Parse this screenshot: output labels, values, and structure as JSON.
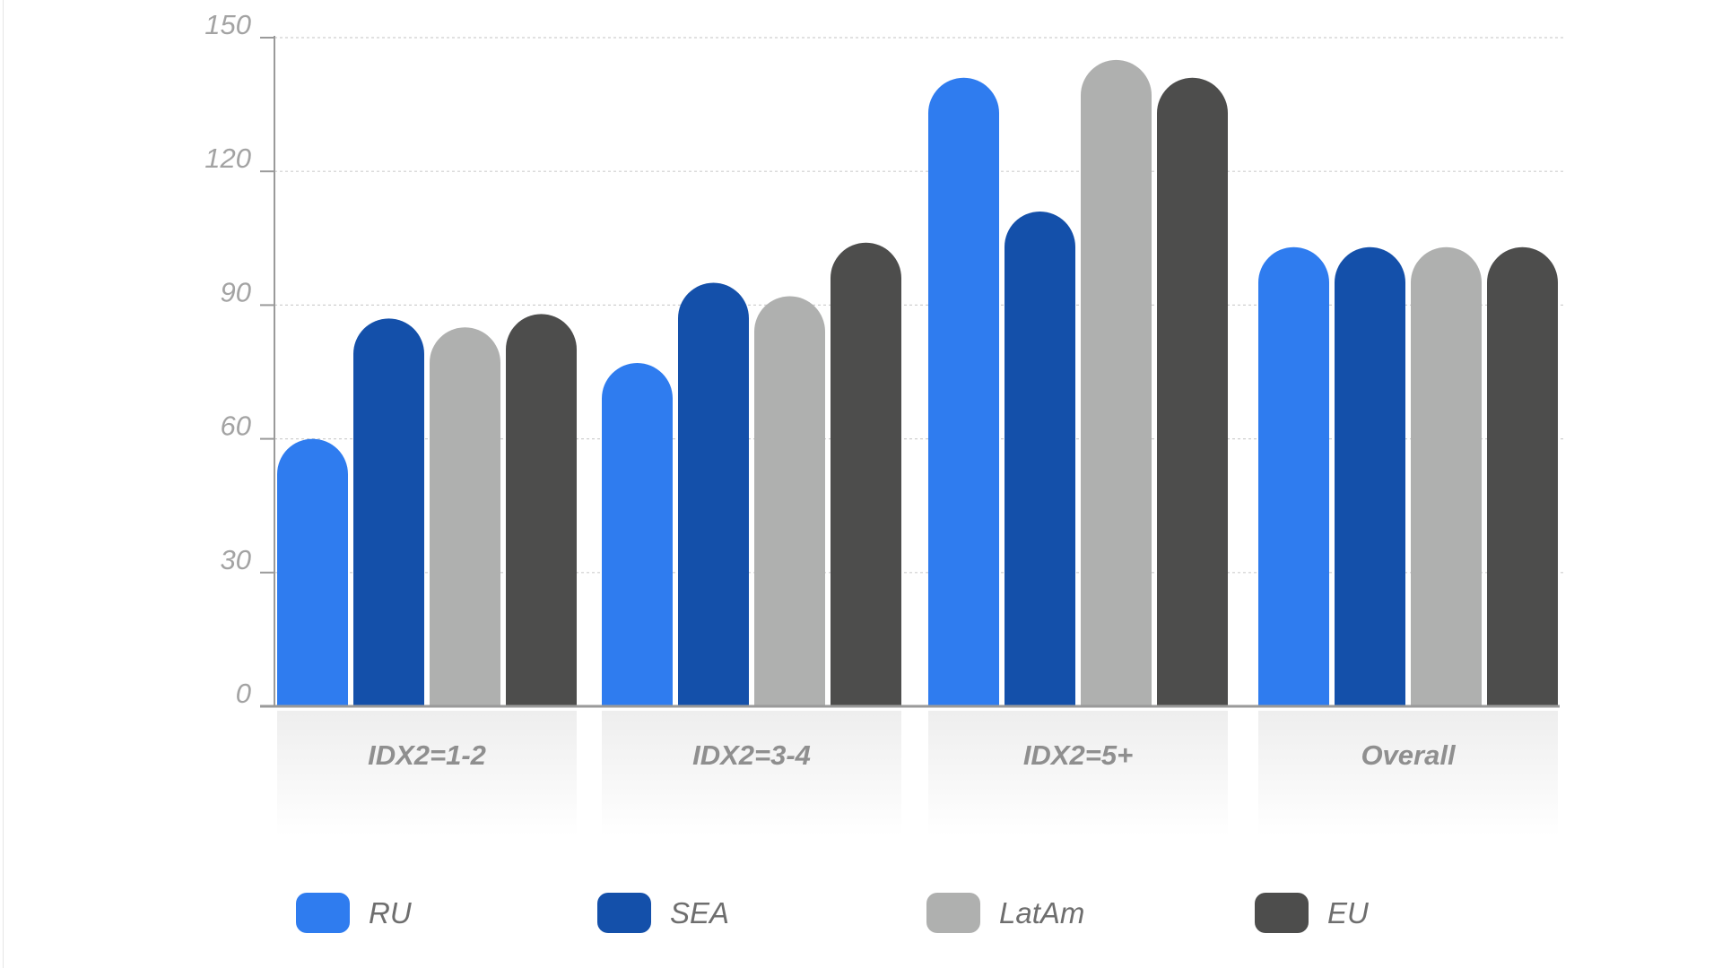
{
  "chart_data": {
    "type": "bar",
    "categories": [
      "IDX2=1-2",
      "IDX2=3-4",
      "IDX2=5+",
      "Overall"
    ],
    "series": [
      {
        "name": "RU",
        "color": "#2f7cef",
        "values": [
          60,
          77,
          141,
          103
        ]
      },
      {
        "name": "SEA",
        "color": "#1450aa",
        "values": [
          87,
          95,
          111,
          103
        ]
      },
      {
        "name": "LatAm",
        "color": "#afb0af",
        "values": [
          85,
          92,
          145,
          103
        ]
      },
      {
        "name": "EU",
        "color": "#4d4d4c",
        "values": [
          88,
          104,
          141,
          103
        ]
      }
    ],
    "yticks": [
      0,
      30,
      60,
      90,
      120,
      150
    ],
    "ylim": [
      0,
      150
    ],
    "grid": true,
    "legend": "bottom",
    "title": "",
    "xlabel": "",
    "ylabel": ""
  }
}
